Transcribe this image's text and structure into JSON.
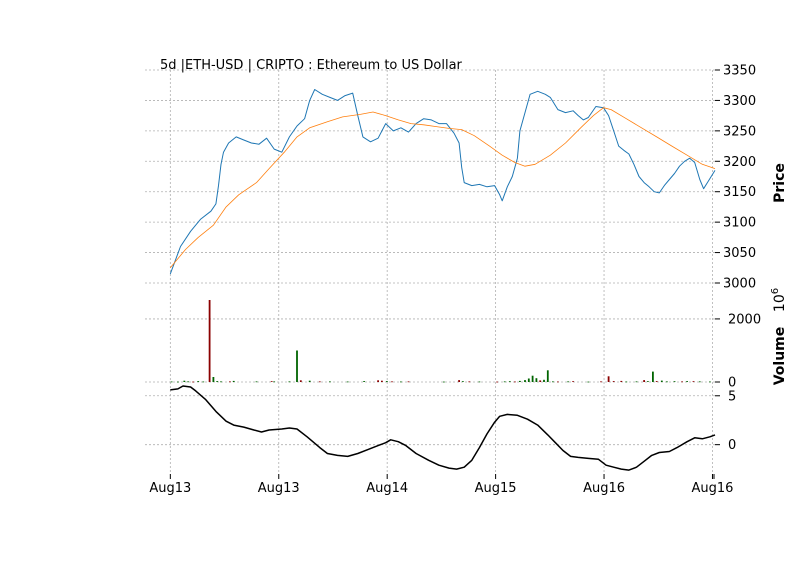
{
  "chart_data": {
    "type": "line",
    "title": "5d |ETH-USD | CRIPTO : Ethereum to US Dollar",
    "x_tick_labels": [
      "Aug13",
      "Aug13",
      "Aug14",
      "Aug15",
      "Aug16",
      "Aug16"
    ],
    "price_panel": {
      "ylabel": "Price",
      "ylim": [
        3000,
        3350
      ],
      "ticks": [
        3000,
        3050,
        3100,
        3150,
        3200,
        3250,
        3300,
        3350
      ],
      "series": [
        {
          "role": "price",
          "color": "#1f77b4",
          "points": [
            [
              0,
              3015
            ],
            [
              8,
              3060
            ],
            [
              16,
              3085
            ],
            [
              24,
              3105
            ],
            [
              32,
              3118
            ],
            [
              36,
              3130
            ],
            [
              38,
              3160
            ],
            [
              40,
              3195
            ],
            [
              42,
              3215
            ],
            [
              46,
              3230
            ],
            [
              52,
              3240
            ],
            [
              58,
              3235
            ],
            [
              64,
              3230
            ],
            [
              70,
              3228
            ],
            [
              76,
              3238
            ],
            [
              82,
              3220
            ],
            [
              88,
              3215
            ],
            [
              94,
              3240
            ],
            [
              100,
              3258
            ],
            [
              106,
              3270
            ],
            [
              110,
              3300
            ],
            [
              114,
              3318
            ],
            [
              120,
              3310
            ],
            [
              126,
              3305
            ],
            [
              132,
              3300
            ],
            [
              138,
              3308
            ],
            [
              144,
              3312
            ],
            [
              148,
              3275
            ],
            [
              152,
              3240
            ],
            [
              158,
              3232
            ],
            [
              164,
              3238
            ],
            [
              170,
              3262
            ],
            [
              176,
              3250
            ],
            [
              182,
              3255
            ],
            [
              188,
              3248
            ],
            [
              194,
              3262
            ],
            [
              200,
              3270
            ],
            [
              206,
              3268
            ],
            [
              212,
              3262
            ],
            [
              218,
              3262
            ],
            [
              224,
              3246
            ],
            [
              228,
              3230
            ],
            [
              230,
              3190
            ],
            [
              232,
              3165
            ],
            [
              238,
              3160
            ],
            [
              244,
              3162
            ],
            [
              250,
              3158
            ],
            [
              256,
              3160
            ],
            [
              260,
              3145
            ],
            [
              262,
              3135
            ],
            [
              266,
              3158
            ],
            [
              270,
              3175
            ],
            [
              274,
              3205
            ],
            [
              276,
              3250
            ],
            [
              280,
              3280
            ],
            [
              284,
              3310
            ],
            [
              290,
              3315
            ],
            [
              296,
              3310
            ],
            [
              300,
              3305
            ],
            [
              306,
              3285
            ],
            [
              312,
              3280
            ],
            [
              318,
              3283
            ],
            [
              322,
              3275
            ],
            [
              326,
              3268
            ],
            [
              330,
              3272
            ],
            [
              336,
              3290
            ],
            [
              342,
              3288
            ],
            [
              346,
              3275
            ],
            [
              350,
              3250
            ],
            [
              354,
              3225
            ],
            [
              358,
              3218
            ],
            [
              362,
              3212
            ],
            [
              366,
              3195
            ],
            [
              370,
              3175
            ],
            [
              374,
              3165
            ],
            [
              378,
              3158
            ],
            [
              382,
              3150
            ],
            [
              386,
              3148
            ],
            [
              390,
              3160
            ],
            [
              394,
              3170
            ],
            [
              398,
              3180
            ],
            [
              402,
              3192
            ],
            [
              406,
              3200
            ],
            [
              410,
              3205
            ],
            [
              414,
              3198
            ],
            [
              418,
              3170
            ],
            [
              421,
              3155
            ],
            [
              424,
              3165
            ],
            [
              427,
              3175
            ],
            [
              430,
              3185
            ]
          ]
        },
        {
          "role": "moving-average",
          "color": "#ff7f0e",
          "points": [
            [
              0,
              3025
            ],
            [
              12,
              3055
            ],
            [
              22,
              3075
            ],
            [
              34,
              3095
            ],
            [
              44,
              3125
            ],
            [
              54,
              3145
            ],
            [
              68,
              3165
            ],
            [
              78,
              3188
            ],
            [
              90,
              3215
            ],
            [
              100,
              3240
            ],
            [
              110,
              3255
            ],
            [
              124,
              3265
            ],
            [
              136,
              3273
            ],
            [
              150,
              3277
            ],
            [
              160,
              3281
            ],
            [
              170,
              3275
            ],
            [
              180,
              3268
            ],
            [
              190,
              3262
            ],
            [
              200,
              3260
            ],
            [
              210,
              3257
            ],
            [
              220,
              3254
            ],
            [
              230,
              3252
            ],
            [
              240,
              3242
            ],
            [
              252,
              3225
            ],
            [
              262,
              3210
            ],
            [
              272,
              3198
            ],
            [
              280,
              3192
            ],
            [
              288,
              3195
            ],
            [
              300,
              3210
            ],
            [
              312,
              3230
            ],
            [
              324,
              3255
            ],
            [
              334,
              3275
            ],
            [
              342,
              3288
            ],
            [
              348,
              3285
            ],
            [
              360,
              3270
            ],
            [
              372,
              3255
            ],
            [
              384,
              3240
            ],
            [
              396,
              3225
            ],
            [
              408,
              3210
            ],
            [
              420,
              3195
            ],
            [
              430,
              3188
            ]
          ]
        }
      ]
    },
    "volume_panel": {
      "ylabel": "Volume",
      "exponent_label": "10",
      "exponent_sup": "6",
      "ylim": [
        0,
        2600
      ],
      "ticks": [
        0,
        2000
      ],
      "up_color": "#006400",
      "down_color": "#8b0000",
      "bars": [
        {
          "x": 1,
          "v": 15,
          "dir": "up"
        },
        {
          "x": 6,
          "v": 12,
          "dir": "up"
        },
        {
          "x": 11,
          "v": 40,
          "dir": "up"
        },
        {
          "x": 14,
          "v": 20,
          "dir": "up"
        },
        {
          "x": 18,
          "v": 12,
          "dir": "down"
        },
        {
          "x": 22,
          "v": 28,
          "dir": "up"
        },
        {
          "x": 26,
          "v": 15,
          "dir": "up"
        },
        {
          "x": 31,
          "v": 2600,
          "dir": "down"
        },
        {
          "x": 34,
          "v": 160,
          "dir": "up"
        },
        {
          "x": 37,
          "v": 30,
          "dir": "up"
        },
        {
          "x": 40,
          "v": 18,
          "dir": "up"
        },
        {
          "x": 47,
          "v": 20,
          "dir": "down"
        },
        {
          "x": 50,
          "v": 35,
          "dir": "up"
        },
        {
          "x": 68,
          "v": 18,
          "dir": "up"
        },
        {
          "x": 80,
          "v": 25,
          "dir": "down"
        },
        {
          "x": 82,
          "v": 20,
          "dir": "up"
        },
        {
          "x": 94,
          "v": 20,
          "dir": "up"
        },
        {
          "x": 100,
          "v": 1000,
          "dir": "up"
        },
        {
          "x": 103,
          "v": 55,
          "dir": "down"
        },
        {
          "x": 110,
          "v": 40,
          "dir": "up"
        },
        {
          "x": 118,
          "v": 20,
          "dir": "down"
        },
        {
          "x": 126,
          "v": 18,
          "dir": "up"
        },
        {
          "x": 140,
          "v": 15,
          "dir": "up"
        },
        {
          "x": 153,
          "v": 30,
          "dir": "up"
        },
        {
          "x": 164,
          "v": 55,
          "dir": "down"
        },
        {
          "x": 167,
          "v": 40,
          "dir": "down"
        },
        {
          "x": 171,
          "v": 28,
          "dir": "up"
        },
        {
          "x": 175,
          "v": 18,
          "dir": "down"
        },
        {
          "x": 182,
          "v": 15,
          "dir": "up"
        },
        {
          "x": 188,
          "v": 20,
          "dir": "down"
        },
        {
          "x": 216,
          "v": 12,
          "dir": "up"
        },
        {
          "x": 228,
          "v": 60,
          "dir": "down"
        },
        {
          "x": 231,
          "v": 25,
          "dir": "up"
        },
        {
          "x": 236,
          "v": 18,
          "dir": "down"
        },
        {
          "x": 244,
          "v": 15,
          "dir": "up"
        },
        {
          "x": 258,
          "v": 12,
          "dir": "down"
        },
        {
          "x": 264,
          "v": 20,
          "dir": "up"
        },
        {
          "x": 268,
          "v": 25,
          "dir": "up"
        },
        {
          "x": 272,
          "v": 15,
          "dir": "down"
        },
        {
          "x": 276,
          "v": 35,
          "dir": "up"
        },
        {
          "x": 280,
          "v": 60,
          "dir": "up"
        },
        {
          "x": 283,
          "v": 110,
          "dir": "up"
        },
        {
          "x": 286,
          "v": 200,
          "dir": "up"
        },
        {
          "x": 289,
          "v": 120,
          "dir": "up"
        },
        {
          "x": 292,
          "v": 50,
          "dir": "down"
        },
        {
          "x": 295,
          "v": 70,
          "dir": "up"
        },
        {
          "x": 298,
          "v": 370,
          "dir": "up"
        },
        {
          "x": 302,
          "v": 20,
          "dir": "up"
        },
        {
          "x": 306,
          "v": 15,
          "dir": "down"
        },
        {
          "x": 314,
          "v": 20,
          "dir": "up"
        },
        {
          "x": 318,
          "v": 25,
          "dir": "down"
        },
        {
          "x": 330,
          "v": 12,
          "dir": "up"
        },
        {
          "x": 340,
          "v": 20,
          "dir": "down"
        },
        {
          "x": 346,
          "v": 180,
          "dir": "down"
        },
        {
          "x": 350,
          "v": 28,
          "dir": "down"
        },
        {
          "x": 356,
          "v": 35,
          "dir": "down"
        },
        {
          "x": 360,
          "v": 15,
          "dir": "up"
        },
        {
          "x": 368,
          "v": 20,
          "dir": "up"
        },
        {
          "x": 374,
          "v": 60,
          "dir": "down"
        },
        {
          "x": 377,
          "v": 25,
          "dir": "up"
        },
        {
          "x": 381,
          "v": 330,
          "dir": "up"
        },
        {
          "x": 384,
          "v": 30,
          "dir": "down"
        },
        {
          "x": 388,
          "v": 45,
          "dir": "up"
        },
        {
          "x": 392,
          "v": 20,
          "dir": "up"
        },
        {
          "x": 398,
          "v": 25,
          "dir": "up"
        },
        {
          "x": 404,
          "v": 18,
          "dir": "down"
        },
        {
          "x": 408,
          "v": 30,
          "dir": "up"
        },
        {
          "x": 413,
          "v": 25,
          "dir": "down"
        },
        {
          "x": 418,
          "v": 20,
          "dir": "up"
        },
        {
          "x": 426,
          "v": 15,
          "dir": "up"
        }
      ]
    },
    "indicator_panel": {
      "ylim": [
        -3,
        6
      ],
      "ticks": [
        0,
        5
      ],
      "color": "#000000",
      "points": [
        [
          0,
          5.6
        ],
        [
          6,
          5.7
        ],
        [
          10,
          6.0
        ],
        [
          16,
          5.9
        ],
        [
          20,
          5.5
        ],
        [
          28,
          4.6
        ],
        [
          36,
          3.4
        ],
        [
          44,
          2.4
        ],
        [
          50,
          2.0
        ],
        [
          58,
          1.8
        ],
        [
          66,
          1.5
        ],
        [
          72,
          1.3
        ],
        [
          78,
          1.5
        ],
        [
          88,
          1.6
        ],
        [
          94,
          1.7
        ],
        [
          100,
          1.6
        ],
        [
          108,
          0.8
        ],
        [
          118,
          -0.3
        ],
        [
          124,
          -0.9
        ],
        [
          132,
          -1.1
        ],
        [
          140,
          -1.2
        ],
        [
          148,
          -0.9
        ],
        [
          156,
          -0.5
        ],
        [
          164,
          -0.1
        ],
        [
          170,
          0.2
        ],
        [
          174,
          0.5
        ],
        [
          180,
          0.3
        ],
        [
          186,
          -0.1
        ],
        [
          194,
          -0.9
        ],
        [
          204,
          -1.6
        ],
        [
          212,
          -2.1
        ],
        [
          220,
          -2.4
        ],
        [
          226,
          -2.5
        ],
        [
          232,
          -2.3
        ],
        [
          238,
          -1.6
        ],
        [
          244,
          -0.3
        ],
        [
          250,
          1.1
        ],
        [
          256,
          2.3
        ],
        [
          260,
          2.9
        ],
        [
          266,
          3.1
        ],
        [
          274,
          3.0
        ],
        [
          282,
          2.6
        ],
        [
          290,
          2.0
        ],
        [
          298,
          1.0
        ],
        [
          304,
          0.2
        ],
        [
          310,
          -0.6
        ],
        [
          316,
          -1.2
        ],
        [
          322,
          -1.3
        ],
        [
          330,
          -1.4
        ],
        [
          338,
          -1.5
        ],
        [
          344,
          -2.1
        ],
        [
          350,
          -2.3
        ],
        [
          356,
          -2.5
        ],
        [
          362,
          -2.6
        ],
        [
          368,
          -2.3
        ],
        [
          374,
          -1.7
        ],
        [
          380,
          -1.1
        ],
        [
          386,
          -0.8
        ],
        [
          394,
          -0.7
        ],
        [
          400,
          -0.3
        ],
        [
          408,
          0.3
        ],
        [
          414,
          0.7
        ],
        [
          420,
          0.6
        ],
        [
          426,
          0.8
        ],
        [
          430,
          1.0
        ]
      ]
    },
    "x_range": [
      -20,
      430
    ],
    "grid": true
  }
}
